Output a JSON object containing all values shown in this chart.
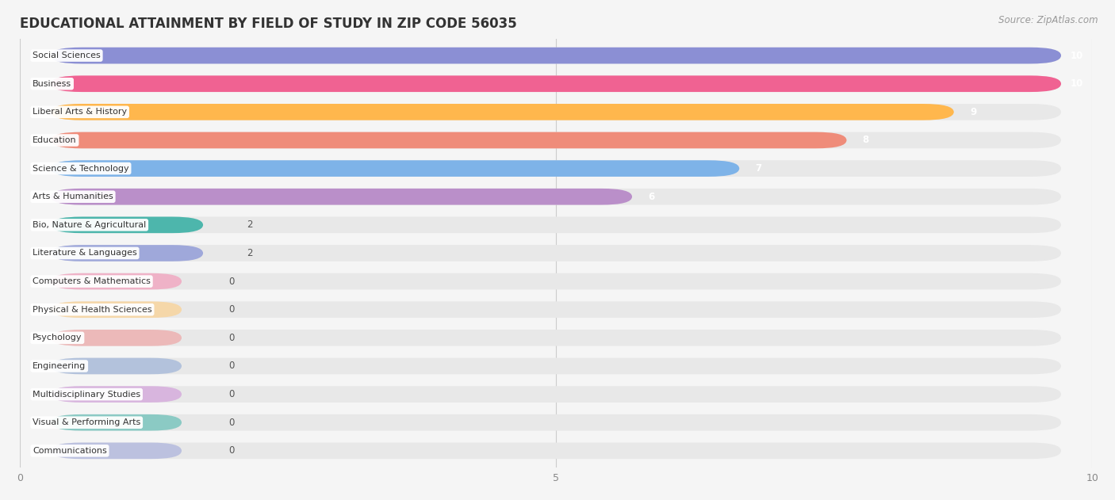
{
  "title": "EDUCATIONAL ATTAINMENT BY FIELD OF STUDY IN ZIP CODE 56035",
  "source": "Source: ZipAtlas.com",
  "categories": [
    "Social Sciences",
    "Business",
    "Liberal Arts & History",
    "Education",
    "Science & Technology",
    "Arts & Humanities",
    "Bio, Nature & Agricultural",
    "Literature & Languages",
    "Computers & Mathematics",
    "Physical & Health Sciences",
    "Psychology",
    "Engineering",
    "Multidisciplinary Studies",
    "Visual & Performing Arts",
    "Communications"
  ],
  "values": [
    10,
    10,
    9,
    8,
    7,
    6,
    2,
    2,
    0,
    0,
    0,
    0,
    0,
    0,
    0
  ],
  "bar_colors": [
    "#8B8FD4",
    "#F06292",
    "#FFB74D",
    "#EF8C7A",
    "#7EB3E8",
    "#BA8FC9",
    "#4DB6AC",
    "#9FA8DA",
    "#F48FB1",
    "#FFCC80",
    "#EF9A9A",
    "#90AAD4",
    "#CE93D8",
    "#4DB6AC",
    "#9FA8DA"
  ],
  "xlim": [
    0,
    10
  ],
  "background_color": "#f5f5f5",
  "row_bg_color": "#ebebeb",
  "row_bg_color2": "#f5f5f5",
  "title_fontsize": 12,
  "source_fontsize": 8.5,
  "bar_height": 0.58
}
